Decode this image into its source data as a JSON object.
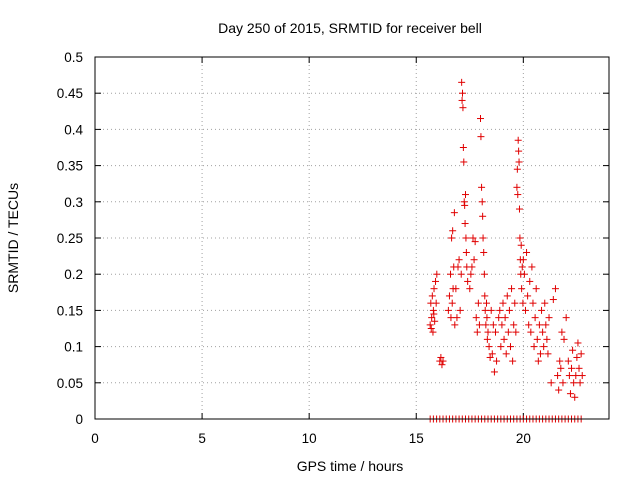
{
  "chart_data": {
    "type": "scatter",
    "title": "Day 250 of 2015, SRMTID for receiver bell",
    "xlabel": "GPS time / hours",
    "ylabel": "SRMTID / TECUs",
    "xlim": [
      0,
      24
    ],
    "ylim": [
      0,
      0.5
    ],
    "x_ticks": [
      "0",
      "5",
      "10",
      "15",
      "20"
    ],
    "y_ticks": [
      "0",
      "0.05",
      "0.1",
      "0.15",
      "0.2",
      "0.25",
      "0.3",
      "0.35",
      "0.4",
      "0.45",
      "0.5"
    ],
    "grid": true,
    "marker": "+",
    "color": "#e00000",
    "series": [
      {
        "points": [
          [
            15.65,
            0.13
          ],
          [
            15.68,
            0.16
          ],
          [
            15.72,
            0.14
          ],
          [
            15.75,
            0.17
          ],
          [
            15.78,
            0.12
          ],
          [
            15.8,
            0.15
          ],
          [
            15.83,
            0.18
          ],
          [
            15.86,
            0.135
          ],
          [
            15.9,
            0.19
          ],
          [
            15.93,
            0.16
          ],
          [
            15.96,
            0.2
          ],
          [
            15.7,
            0.125
          ],
          [
            15.82,
            0.145
          ],
          [
            16.1,
            0.08
          ],
          [
            16.15,
            0.085
          ],
          [
            16.2,
            0.075
          ],
          [
            16.25,
            0.08
          ],
          [
            16.5,
            0.15
          ],
          [
            16.55,
            0.17
          ],
          [
            16.6,
            0.2
          ],
          [
            16.62,
            0.14
          ],
          [
            16.65,
            0.25
          ],
          [
            16.68,
            0.16
          ],
          [
            16.7,
            0.26
          ],
          [
            16.72,
            0.18
          ],
          [
            16.75,
            0.21
          ],
          [
            16.78,
            0.285
          ],
          [
            16.8,
            0.13
          ],
          [
            16.85,
            0.18
          ],
          [
            16.9,
            0.14
          ],
          [
            16.95,
            0.21
          ],
          [
            17.0,
            0.22
          ],
          [
            17.05,
            0.15
          ],
          [
            17.1,
            0.2
          ],
          [
            17.12,
            0.465
          ],
          [
            17.14,
            0.44
          ],
          [
            17.16,
            0.45
          ],
          [
            17.18,
            0.43
          ],
          [
            17.2,
            0.375
          ],
          [
            17.22,
            0.355
          ],
          [
            17.24,
            0.3
          ],
          [
            17.26,
            0.295
          ],
          [
            17.28,
            0.27
          ],
          [
            17.3,
            0.31
          ],
          [
            17.32,
            0.25
          ],
          [
            17.34,
            0.23
          ],
          [
            17.36,
            0.21
          ],
          [
            17.4,
            0.19
          ],
          [
            17.5,
            0.18
          ],
          [
            17.55,
            0.2
          ],
          [
            17.6,
            0.21
          ],
          [
            17.65,
            0.25
          ],
          [
            17.7,
            0.22
          ],
          [
            17.75,
            0.245
          ],
          [
            17.8,
            0.14
          ],
          [
            17.85,
            0.12
          ],
          [
            17.9,
            0.16
          ],
          [
            17.95,
            0.13
          ],
          [
            18.0,
            0.415
          ],
          [
            18.02,
            0.39
          ],
          [
            18.05,
            0.32
          ],
          [
            18.08,
            0.3
          ],
          [
            18.1,
            0.28
          ],
          [
            18.12,
            0.25
          ],
          [
            18.15,
            0.23
          ],
          [
            18.18,
            0.2
          ],
          [
            18.2,
            0.17
          ],
          [
            18.22,
            0.15
          ],
          [
            18.25,
            0.13
          ],
          [
            18.28,
            0.16
          ],
          [
            18.3,
            0.14
          ],
          [
            18.32,
            0.11
          ],
          [
            18.35,
            0.12
          ],
          [
            18.4,
            0.1
          ],
          [
            18.45,
            0.085
          ],
          [
            18.5,
            0.15
          ],
          [
            18.55,
            0.09
          ],
          [
            18.6,
            0.13
          ],
          [
            18.65,
            0.065
          ],
          [
            18.7,
            0.12
          ],
          [
            18.75,
            0.08
          ],
          [
            18.85,
            0.14
          ],
          [
            18.9,
            0.15
          ],
          [
            18.95,
            0.1
          ],
          [
            19.0,
            0.13
          ],
          [
            19.05,
            0.16
          ],
          [
            19.1,
            0.11
          ],
          [
            19.15,
            0.14
          ],
          [
            19.2,
            0.09
          ],
          [
            19.25,
            0.17
          ],
          [
            19.3,
            0.12
          ],
          [
            19.35,
            0.15
          ],
          [
            19.4,
            0.1
          ],
          [
            19.45,
            0.18
          ],
          [
            19.5,
            0.08
          ],
          [
            19.55,
            0.13
          ],
          [
            19.6,
            0.16
          ],
          [
            19.65,
            0.12
          ],
          [
            19.7,
            0.32
          ],
          [
            19.72,
            0.345
          ],
          [
            19.74,
            0.31
          ],
          [
            19.76,
            0.385
          ],
          [
            19.78,
            0.37
          ],
          [
            19.8,
            0.355
          ],
          [
            19.82,
            0.29
          ],
          [
            19.84,
            0.25
          ],
          [
            19.86,
            0.22
          ],
          [
            19.88,
            0.2
          ],
          [
            19.9,
            0.24
          ],
          [
            19.92,
            0.18
          ],
          [
            19.95,
            0.21
          ],
          [
            19.98,
            0.16
          ],
          [
            20.0,
            0.22
          ],
          [
            20.05,
            0.2
          ],
          [
            20.1,
            0.15
          ],
          [
            20.15,
            0.23
          ],
          [
            20.2,
            0.17
          ],
          [
            20.25,
            0.13
          ],
          [
            20.3,
            0.19
          ],
          [
            20.35,
            0.12
          ],
          [
            20.4,
            0.21
          ],
          [
            20.45,
            0.16
          ],
          [
            20.5,
            0.1
          ],
          [
            20.55,
            0.14
          ],
          [
            20.6,
            0.18
          ],
          [
            20.65,
            0.11
          ],
          [
            20.7,
            0.08
          ],
          [
            20.75,
            0.13
          ],
          [
            20.8,
            0.09
          ],
          [
            20.85,
            0.15
          ],
          [
            20.9,
            0.12
          ],
          [
            20.95,
            0.1
          ],
          [
            21.0,
            0.16
          ],
          [
            21.05,
            0.13
          ],
          [
            21.1,
            0.11
          ],
          [
            21.15,
            0.09
          ],
          [
            21.2,
            0.14
          ],
          [
            21.3,
            0.05
          ],
          [
            21.4,
            0.165
          ],
          [
            21.5,
            0.18
          ],
          [
            21.6,
            0.06
          ],
          [
            21.65,
            0.04
          ],
          [
            21.7,
            0.08
          ],
          [
            21.75,
            0.07
          ],
          [
            21.8,
            0.12
          ],
          [
            21.85,
            0.05
          ],
          [
            21.9,
            0.11
          ],
          [
            22.0,
            0.14
          ],
          [
            22.1,
            0.08
          ],
          [
            22.15,
            0.06
          ],
          [
            22.2,
            0.035
          ],
          [
            22.25,
            0.07
          ],
          [
            22.3,
            0.095
          ],
          [
            22.35,
            0.05
          ],
          [
            22.4,
            0.03
          ],
          [
            22.45,
            0.06
          ],
          [
            22.5,
            0.085
          ],
          [
            22.55,
            0.105
          ],
          [
            22.6,
            0.07
          ],
          [
            22.65,
            0.05
          ],
          [
            22.7,
            0.09
          ],
          [
            22.75,
            0.06
          ]
        ]
      },
      {
        "points": [
          [
            15.65,
            0
          ],
          [
            15.8,
            0
          ],
          [
            15.95,
            0
          ],
          [
            16.1,
            0
          ],
          [
            16.25,
            0
          ],
          [
            16.4,
            0
          ],
          [
            16.55,
            0
          ],
          [
            16.7,
            0
          ],
          [
            16.85,
            0
          ],
          [
            17.0,
            0
          ],
          [
            17.15,
            0
          ],
          [
            17.3,
            0
          ],
          [
            17.45,
            0
          ],
          [
            17.6,
            0
          ],
          [
            17.75,
            0
          ],
          [
            17.9,
            0
          ],
          [
            18.05,
            0
          ],
          [
            18.2,
            0
          ],
          [
            18.35,
            0
          ],
          [
            18.5,
            0
          ],
          [
            18.65,
            0
          ],
          [
            18.8,
            0
          ],
          [
            18.95,
            0
          ],
          [
            19.1,
            0
          ],
          [
            19.25,
            0
          ],
          [
            19.4,
            0
          ],
          [
            19.55,
            0
          ],
          [
            19.7,
            0
          ],
          [
            19.85,
            0
          ],
          [
            20.0,
            0
          ],
          [
            20.15,
            0
          ],
          [
            20.3,
            0
          ],
          [
            20.45,
            0
          ],
          [
            20.6,
            0
          ],
          [
            20.75,
            0
          ],
          [
            20.9,
            0
          ],
          [
            21.05,
            0
          ],
          [
            21.2,
            0
          ],
          [
            21.35,
            0
          ],
          [
            21.5,
            0
          ],
          [
            21.65,
            0
          ],
          [
            21.8,
            0
          ],
          [
            21.95,
            0
          ],
          [
            22.1,
            0
          ],
          [
            22.25,
            0
          ],
          [
            22.4,
            0
          ],
          [
            22.55,
            0
          ],
          [
            22.7,
            0
          ]
        ]
      }
    ]
  }
}
